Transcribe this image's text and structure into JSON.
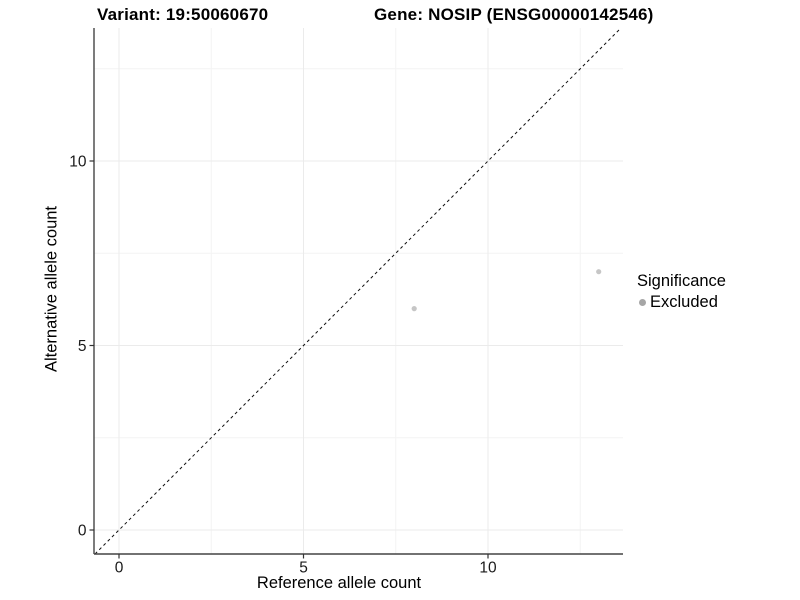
{
  "chart_data": {
    "type": "scatter",
    "title_left": "Variant: 19:50060670",
    "title_right": "Gene: NOSIP (ENSG00000142546)",
    "xlabel": "Reference allele count",
    "ylabel": "Alternative allele count",
    "xlim": [
      -0.68,
      13.66
    ],
    "ylim": [
      -0.65,
      13.6
    ],
    "x_ticks": [
      0,
      5,
      10
    ],
    "y_ticks": [
      0,
      5,
      10
    ],
    "x_minor_ticks": [
      2.5,
      7.5,
      12.5
    ],
    "y_minor_ticks": [
      2.5,
      7.5,
      12.5
    ],
    "grid": true,
    "identity_line": {
      "style": "dashed",
      "color": "#111111"
    },
    "series": [
      {
        "name": "Excluded",
        "color": "#c6c6c6",
        "points": [
          [
            8,
            6
          ],
          [
            13,
            7
          ]
        ]
      }
    ],
    "legend": {
      "title": "Significance",
      "position": "right",
      "entries": [
        {
          "label": "Excluded",
          "color": "#a6a6a6"
        }
      ]
    }
  }
}
